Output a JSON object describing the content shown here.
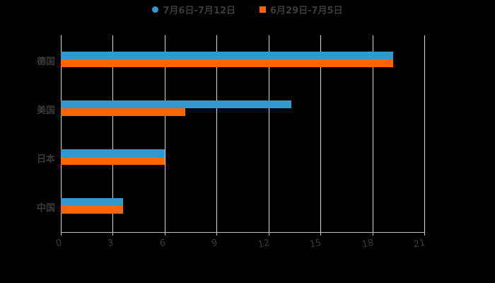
{
  "chart_data": {
    "type": "bar",
    "orientation": "horizontal",
    "title": "",
    "categories": [
      "德国",
      "美国",
      "日本",
      "中国"
    ],
    "series": [
      {
        "name": "7月6日-7月12日",
        "color": "#3399cc",
        "values": [
          19.2,
          13.3,
          6.0,
          3.6
        ]
      },
      {
        "name": "6月29日-7月5日",
        "color": "#ff6600",
        "values": [
          19.2,
          7.2,
          6.0,
          3.6
        ]
      }
    ],
    "xlabel": "",
    "ylabel": "",
    "xlim": [
      0,
      21
    ],
    "xticks": [
      "0",
      "3",
      "6",
      "9",
      "12",
      "15",
      "18",
      "21"
    ],
    "grid": true,
    "legend_position": "top"
  },
  "legend": [
    {
      "label": "7月6日-7月12日",
      "color": "#3399cc",
      "shape": "circle"
    },
    {
      "label": "6月29日-7月5日",
      "color": "#ff6600",
      "shape": "square"
    }
  ]
}
